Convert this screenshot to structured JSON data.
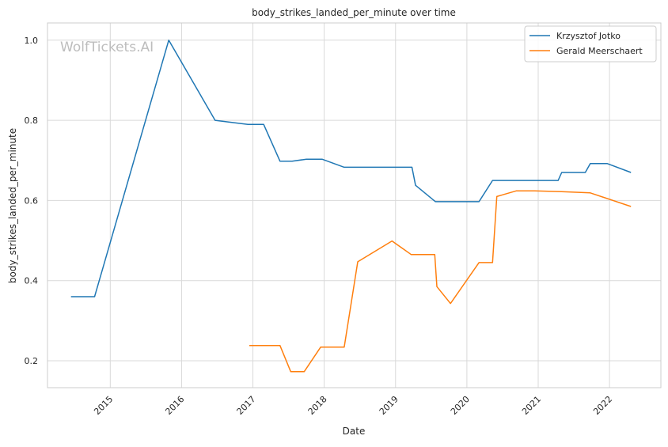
{
  "chart_data": {
    "type": "line",
    "title": "body_strikes_landed_per_minute over time",
    "xlabel": "Date",
    "ylabel": "body_strikes_landed_per_minute",
    "watermark": "WolfTickets.AI",
    "xlim": [
      2014.12,
      2022.72
    ],
    "ylim": [
      0.133,
      1.043
    ],
    "x_ticks": [
      2015,
      2016,
      2017,
      2018,
      2019,
      2020,
      2021,
      2022
    ],
    "x_tick_labels": [
      "2015",
      "2016",
      "2017",
      "2018",
      "2019",
      "2020",
      "2021",
      "2022"
    ],
    "y_ticks": [
      0.2,
      0.4,
      0.6,
      0.8,
      1.0
    ],
    "y_tick_labels": [
      "0.2",
      "0.4",
      "0.6",
      "0.8",
      "1.0"
    ],
    "grid": true,
    "legend_position": "top-right",
    "series": [
      {
        "name": "Krzysztof Jotko",
        "color": "#1f77b4",
        "x": [
          2014.45,
          2014.78,
          2015.82,
          2016.47,
          2016.93,
          2017.15,
          2017.38,
          2017.55,
          2017.75,
          2017.97,
          2018.28,
          2018.6,
          2018.95,
          2019.23,
          2019.28,
          2019.56,
          2019.9,
          2020.17,
          2020.36,
          2020.62,
          2020.95,
          2021.28,
          2021.33,
          2021.66,
          2021.73,
          2021.97,
          2022.3
        ],
        "y": [
          0.36,
          0.36,
          1.0,
          0.8,
          0.79,
          0.79,
          0.698,
          0.698,
          0.703,
          0.703,
          0.683,
          0.683,
          0.683,
          0.683,
          0.638,
          0.597,
          0.597,
          0.597,
          0.65,
          0.65,
          0.65,
          0.65,
          0.67,
          0.67,
          0.692,
          0.692,
          0.67
        ]
      },
      {
        "name": "Gerald Meerschaert",
        "color": "#ff7f0e",
        "x": [
          2016.95,
          2017.38,
          2017.53,
          2017.72,
          2017.95,
          2018.28,
          2018.47,
          2018.95,
          2019.22,
          2019.55,
          2019.58,
          2019.77,
          2020.17,
          2020.36,
          2020.42,
          2020.69,
          2020.95,
          2021.33,
          2021.73,
          2022.3
        ],
        "y": [
          0.238,
          0.238,
          0.173,
          0.173,
          0.234,
          0.234,
          0.447,
          0.499,
          0.465,
          0.465,
          0.385,
          0.343,
          0.445,
          0.445,
          0.61,
          0.624,
          0.624,
          0.622,
          0.619,
          0.585
        ]
      }
    ]
  }
}
